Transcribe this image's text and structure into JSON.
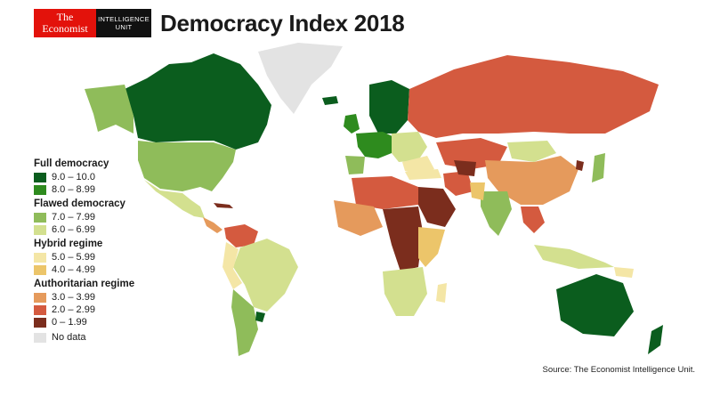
{
  "logo": {
    "economist_line1": "The",
    "economist_line2": "Economist",
    "eiu_line1": "INTELLIGENCE",
    "eiu_line2": "UNIT"
  },
  "title": "Democracy Index 2018",
  "colors": {
    "full_9_10": "#0b5d1e",
    "full_8_899": "#2e8b1e",
    "flawed_7_799": "#8fbc5a",
    "flawed_6_699": "#d3e08f",
    "hybrid_5_599": "#f4e6a6",
    "hybrid_4_499": "#ecc56a",
    "auth_3_399": "#e59a5c",
    "auth_2_299": "#d45a3f",
    "auth_0_199": "#7b2d1d",
    "no_data": "#e3e3e3"
  },
  "legend": {
    "full": {
      "heading": "Full democracy",
      "r1": "9.0 – 10.0",
      "r2": "8.0 – 8.99"
    },
    "flawed": {
      "heading": "Flawed democracy",
      "r1": "7.0 – 7.99",
      "r2": "6.0 – 6.99"
    },
    "hybrid": {
      "heading": "Hybrid regime",
      "r1": "5.0 – 5.99",
      "r2": "4.0 – 4.99"
    },
    "auth": {
      "heading": "Authoritarian regime",
      "r1": "3.0 – 3.99",
      "r2": "2.0 – 2.99",
      "r3": "0 – 1.99"
    },
    "no_data": "No data"
  },
  "source": "Source: The Economist Intelligence Unit."
}
